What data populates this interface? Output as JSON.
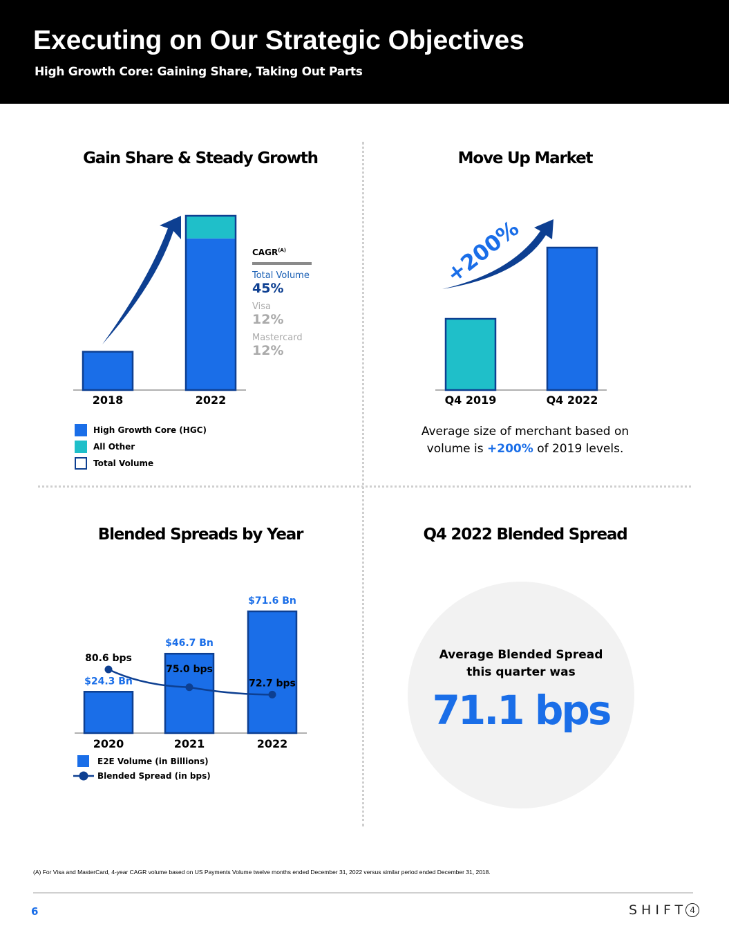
{
  "header": {
    "title": "Executing on Our Strategic Objectives",
    "subtitle": "High Growth Core: Gaining Share, Taking Out Parts"
  },
  "panels": {
    "gain_share": {
      "title": "Gain Share & Steady Growth",
      "cagr_header": "CAGR",
      "cagr_sup": "(A)",
      "cagr_items": [
        {
          "label": "Total Volume",
          "value": "45%"
        },
        {
          "label": "Visa",
          "value": "12%"
        },
        {
          "label": "Mastercard",
          "value": "12%"
        }
      ],
      "legend": [
        "High Growth Core (HGC)",
        "All Other",
        "Total Volume"
      ]
    },
    "move_up": {
      "title": "Move Up Market",
      "growth_label": "+200%",
      "note_prefix": "Average size of merchant based on volume is ",
      "note_highlight": "+200%",
      "note_suffix": " of 2019 levels."
    },
    "blended": {
      "title": "Blended Spreads by Year",
      "legend_bar": "E2E Volume (in Billions)",
      "legend_line": "Blended Spread (in bps)"
    },
    "q4": {
      "title": "Q4 2022 Blended Spread",
      "label_line1": "Average Blended Spread",
      "label_line2": "this quarter was",
      "value": "71.1 bps"
    }
  },
  "chart_data": [
    {
      "type": "bar",
      "categories": [
        "2018",
        "2022"
      ],
      "series": [
        {
          "name": "High Growth Core (HGC)",
          "values": [
            22,
            87
          ]
        },
        {
          "name": "All Other",
          "values": [
            0,
            13
          ]
        }
      ],
      "ylim": [
        0,
        100
      ],
      "colors": {
        "hgc": "#1a6ee8",
        "other": "#1fbfc9",
        "outline": "#0d3f91"
      }
    },
    {
      "type": "bar",
      "categories": [
        "Q4 2019",
        "Q4 2022"
      ],
      "values": [
        1,
        2
      ],
      "ylim": [
        0,
        2
      ],
      "colors": {
        "q4_2019": "#1fbfc9",
        "q4_2022": "#1a6ee8",
        "outline": "#0d3f91"
      }
    },
    {
      "type": "bar",
      "categories": [
        "2020",
        "2021",
        "2022"
      ],
      "series": [
        {
          "name": "E2E Volume (in Billions)",
          "values": [
            24.3,
            46.7,
            71.6
          ],
          "labels": [
            "$24.3 Bn",
            "$46.7 Bn",
            "$71.6 Bn"
          ]
        },
        {
          "name": "Blended Spread (in bps)",
          "values": [
            80.6,
            75.0,
            72.7
          ],
          "labels": [
            "80.6 bps",
            "75.0 bps",
            "72.7 bps"
          ]
        }
      ],
      "colors": {
        "bar": "#1a6ee8",
        "line": "#0d3f91",
        "label": "#1a6ee8"
      }
    }
  ],
  "footer": {
    "footnote": "(A) For Visa and MasterCard, 4-year CAGR volume based on US Payments Volume twelve months ended December 31, 2022 versus similar period ended December 31, 2018.",
    "page_number": "6",
    "logo_text": "SHIFT",
    "logo_mark": "4"
  }
}
